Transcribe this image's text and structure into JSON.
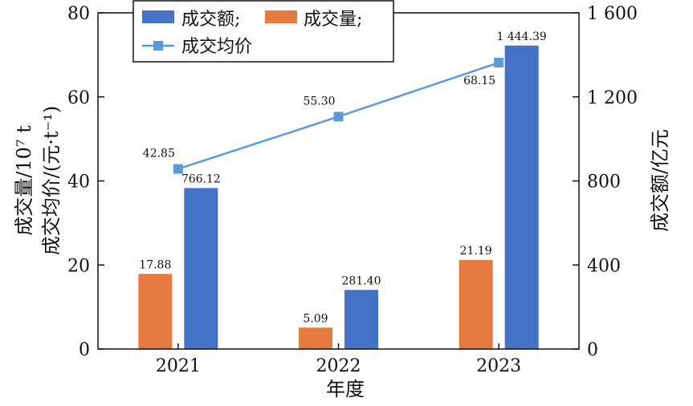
{
  "chart_data": {
    "type": "bar",
    "categories": [
      "2021",
      "2022",
      "2023"
    ],
    "xlabel": "年度",
    "ylabel_left_line1": "成交量/10⁷ t",
    "ylabel_left_line2": "成交均价/(元·t⁻¹)",
    "ylabel_right": "成交额/亿元",
    "ylim_left": [
      0,
      80
    ],
    "ylim_right": [
      0,
      1600
    ],
    "yticks_left": [
      0,
      20,
      40,
      60,
      80
    ],
    "yticks_right": [
      0,
      400,
      800,
      1200,
      1600
    ],
    "yticks_right_labels": [
      "0",
      "400",
      "800",
      "1 200",
      "1 600"
    ],
    "grid": false,
    "legend_position": "top",
    "series": [
      {
        "name": "成交额;",
        "type": "bar",
        "axis": "right",
        "color": "#4472C4",
        "values": [
          766.12,
          281.4,
          1444.39
        ],
        "labels": [
          "766.12",
          "281.40",
          "1 444.39"
        ]
      },
      {
        "name": "成交量;",
        "type": "bar",
        "axis": "left",
        "color": "#E57B41",
        "values": [
          17.88,
          5.09,
          21.19
        ],
        "labels": [
          "17.88",
          "5.09",
          "21.19"
        ]
      },
      {
        "name": "成交均价",
        "type": "line",
        "axis": "left",
        "color": "#5B9BD5",
        "values": [
          42.85,
          55.3,
          68.15
        ],
        "labels": [
          "42.85",
          "55.30",
          "68.15"
        ]
      }
    ]
  }
}
